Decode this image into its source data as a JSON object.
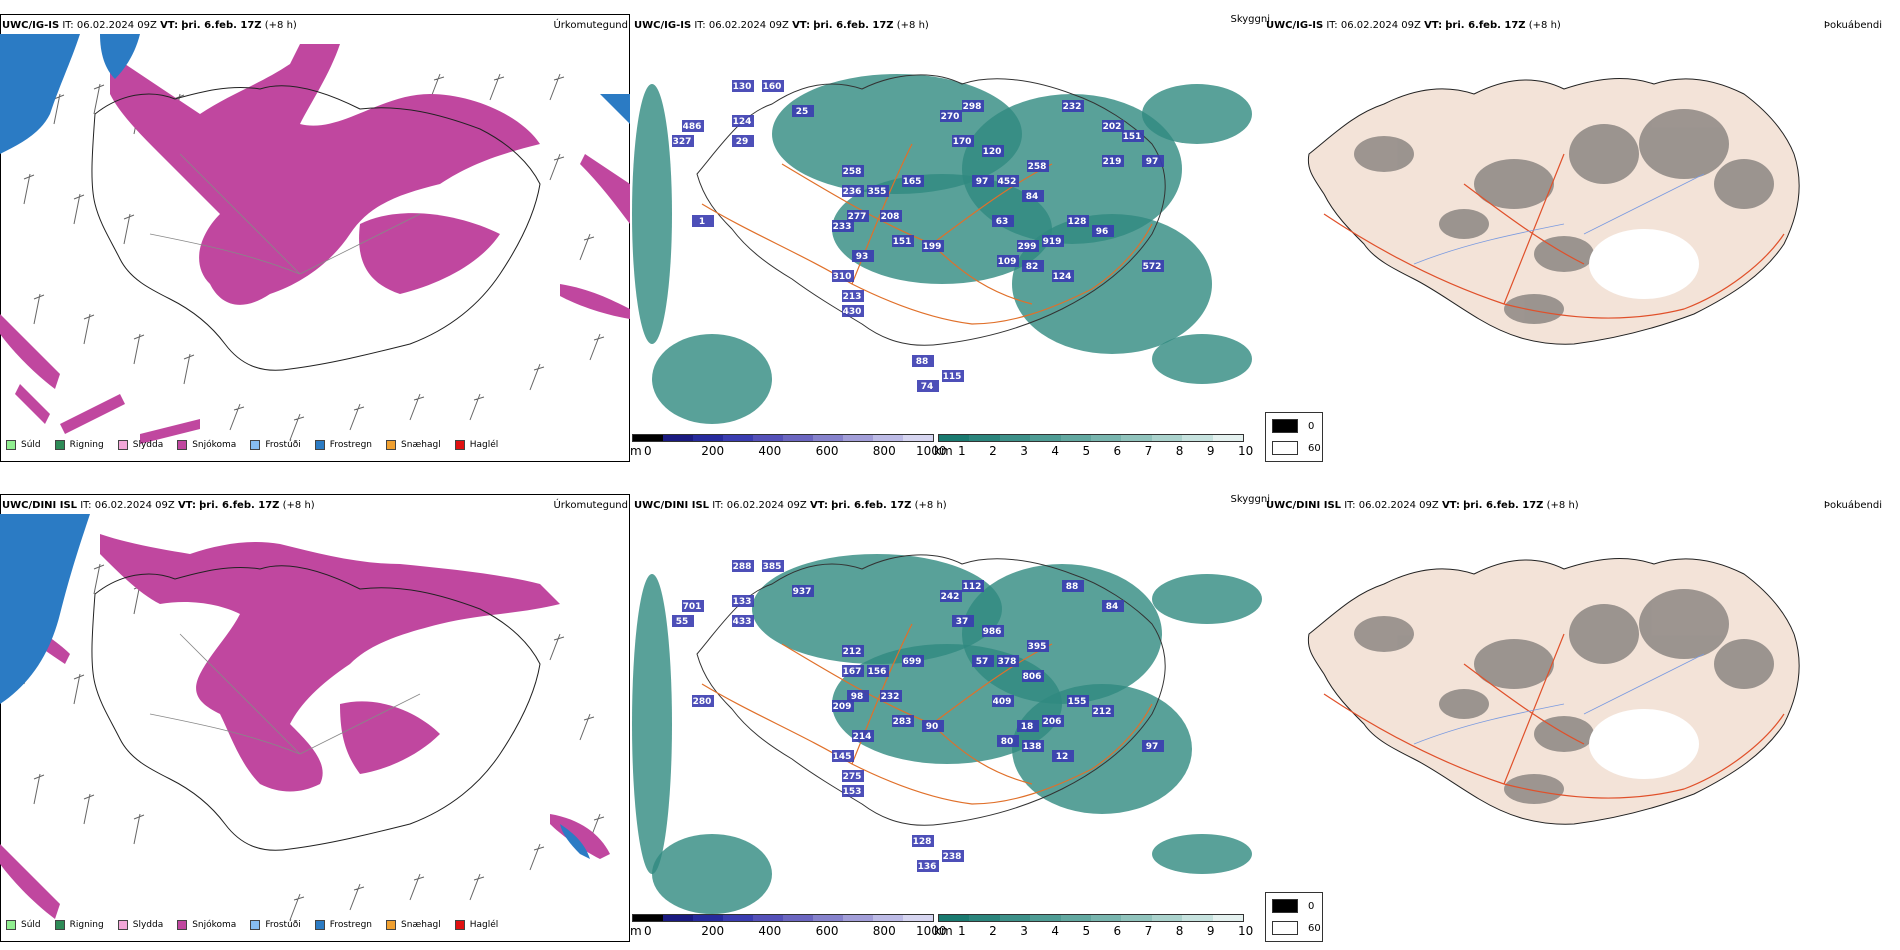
{
  "panels": [
    {
      "model": "UWC/IG-IS",
      "it_label": "IT:",
      "it_value": "06.02.2024 09Z",
      "vt_label": "VT:",
      "vt_value": "þri. 6.feb. 17Z",
      "lead": "(+8 h)",
      "precip_title": "Úrkomutegund",
      "vis_title": "Skyggni",
      "fog_title": "Þokuábendi",
      "height_labels": [
        "130",
        "160",
        "486",
        "124",
        "327",
        "25",
        "29",
        "1",
        "258",
        "236",
        "355",
        "165",
        "277",
        "208",
        "151",
        "233",
        "93",
        "199",
        "310",
        "213",
        "430",
        "88",
        "74",
        "115",
        "270",
        "298",
        "170",
        "120",
        "97",
        "452",
        "258",
        "84",
        "63",
        "919",
        "299",
        "82",
        "109",
        "124",
        "128",
        "96",
        "572",
        "232",
        "202",
        "151",
        "219",
        "97"
      ]
    },
    {
      "model": "UWC/DINI ISL",
      "it_label": "IT:",
      "it_value": "06.02.2024 09Z",
      "vt_label": "VT:",
      "vt_value": "þri. 6.feb. 17Z",
      "lead": "(+8 h)",
      "precip_title": "Úrkomutegund",
      "vis_title": "Skyggni",
      "fog_title": "Þokuábendi",
      "height_labels": [
        "288",
        "385",
        "701",
        "133",
        "55",
        "937",
        "433",
        "280",
        "212",
        "167",
        "156",
        "699",
        "98",
        "232",
        "283",
        "209",
        "214",
        "90",
        "145",
        "275",
        "153",
        "128",
        "136",
        "238",
        "242",
        "112",
        "37",
        "986",
        "57",
        "378",
        "395",
        "806",
        "409",
        "206",
        "18",
        "138",
        "80",
        "12",
        "155",
        "212",
        "97",
        "88",
        "84"
      ]
    }
  ],
  "precip_legend": [
    {
      "label": "Súld",
      "color": "#90ee90"
    },
    {
      "label": "Rigning",
      "color": "#2e8b57"
    },
    {
      "label": "Slydda",
      "color": "#f2a7d8"
    },
    {
      "label": "Snjókoma",
      "color": "#c0479f"
    },
    {
      "label": "Frostúði",
      "color": "#87bdf0"
    },
    {
      "label": "Frostregn",
      "color": "#2b7bc4"
    },
    {
      "label": "Snæhagl",
      "color": "#f0a030"
    },
    {
      "label": "Haglél",
      "color": "#e01010"
    }
  ],
  "cloud_base_scale": {
    "unit": "m",
    "ticks": [
      "0",
      "200",
      "400",
      "600",
      "800",
      "1000"
    ],
    "colors": [
      "#000000",
      "#1a1a80",
      "#262a9c",
      "#3a3cb0",
      "#5450b8",
      "#6b66c0",
      "#8682cc",
      "#a29ed8",
      "#bdbbe6",
      "#d6d5f0"
    ]
  },
  "visibility_scale": {
    "unit": "km",
    "ticks": [
      "1",
      "2",
      "3",
      "4",
      "5",
      "6",
      "7",
      "8",
      "9",
      "10"
    ],
    "colors": [
      "#1a7a70",
      "#2b857c",
      "#3c9088",
      "#4e9c94",
      "#62a8a0",
      "#78b5ae",
      "#90c3bc",
      "#aad2cc",
      "#c6e2de",
      "#e4f1ef"
    ]
  },
  "fog_legend": [
    {
      "label": "0",
      "color": "#000000"
    },
    {
      "label": "60",
      "color": "#ffffff"
    }
  ],
  "colors": {
    "snow": "#c0479f",
    "freezing_rain": "#2b7bc4",
    "visibility_teal": "#2f8a80",
    "roads": "#e0702a",
    "land_fog": "#f3e3d8",
    "cloud_base": "#3a3cb0"
  }
}
